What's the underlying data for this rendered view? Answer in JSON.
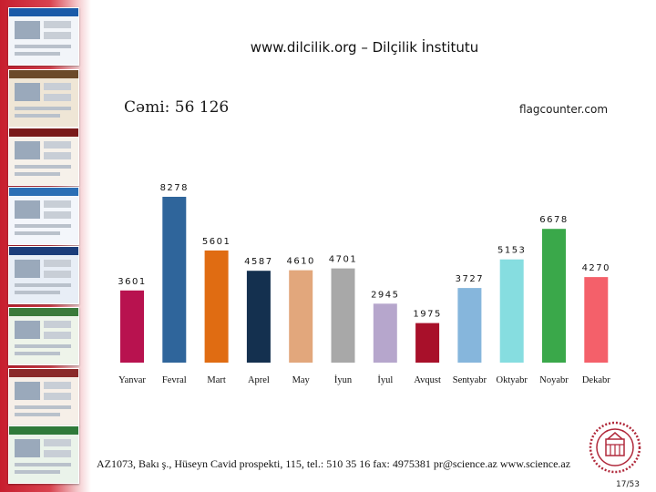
{
  "title": "www.dilcilik.org – Dilçilik İnstitutu",
  "total_label": "Cəmi: 56 126",
  "counter_source": "flagcounter.com",
  "chart_data": {
    "type": "bar",
    "categories": [
      "Yanvar",
      "Fevral",
      "Mart",
      "Aprel",
      "May",
      "İyun",
      "İyul",
      "Avqust",
      "Sentyabr",
      "Oktyabr",
      "Noyabr",
      "Dekabr"
    ],
    "values": [
      3601,
      8278,
      5601,
      4587,
      4610,
      4701,
      2945,
      1975,
      3727,
      5153,
      6678,
      4270
    ],
    "value_labels": [
      "3601",
      "8278",
      "5601",
      "4587",
      "4610",
      "4701",
      "2945",
      "1975",
      "3727",
      "5153",
      "6678",
      "4270"
    ],
    "colors": [
      "#b8124f",
      "#2f659b",
      "#e06c12",
      "#14304f",
      "#e2a77c",
      "#a8a8a8",
      "#b6a6cc",
      "#a8102a",
      "#86b6dc",
      "#86dde0",
      "#3aa84a",
      "#f4606a"
    ],
    "title": "",
    "xlabel": "",
    "ylabel": "",
    "legend": "none",
    "grid": false
  },
  "footer": {
    "text": "AZ1073, Bakı ş., Hüseyn Cavid prospekti, 115, tel.: 510 35 16 fax: 4975381 pr@science.az www.science.az",
    "page_number": "17/53"
  },
  "sidebar": {
    "thumbnails": [
      {
        "name": "screenshot-thumbnail",
        "bar": "#1a5aa8",
        "body": "#f2f5f9"
      },
      {
        "name": "screenshot-thumbnail",
        "bar": "#6b4a2a",
        "body": "#efe6d6"
      },
      {
        "name": "screenshot-thumbnail",
        "bar": "#7a1a1a",
        "body": "#f6f1ea"
      },
      {
        "name": "screenshot-thumbnail",
        "bar": "#2c6fb5",
        "body": "#f3f6fb"
      },
      {
        "name": "screenshot-thumbnail",
        "bar": "#1b3d7a",
        "body": "#e8eef6"
      },
      {
        "name": "screenshot-thumbnail",
        "bar": "#3b7a3b",
        "body": "#eef4ea"
      },
      {
        "name": "screenshot-thumbnail",
        "bar": "#8a2a2a",
        "body": "#f6efe8"
      },
      {
        "name": "screenshot-thumbnail",
        "bar": "#2f7a3a",
        "body": "#eaf3ea"
      }
    ]
  }
}
